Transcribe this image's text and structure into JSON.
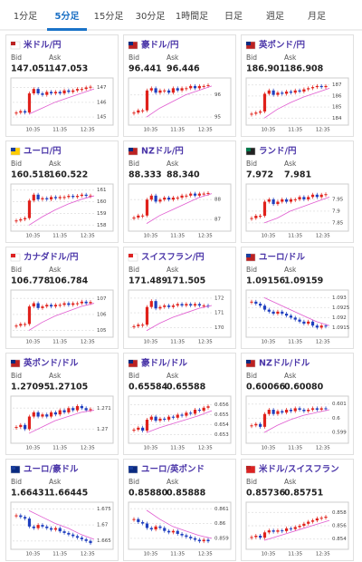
{
  "tabs": [
    "1分足",
    "5分足",
    "15分足",
    "30分足",
    "1時間足",
    "日足",
    "週足",
    "月足"
  ],
  "active_tab": 1,
  "labels": {
    "bid": "Bid",
    "ask": "Ask"
  },
  "time_labels": [
    "10:35",
    "11:35",
    "12:35"
  ],
  "cards": [
    {
      "name": "米ドル/円",
      "bid": "147.051",
      "ask": "147.053",
      "chart": {
        "ylim": [
          144.7,
          147.4
        ],
        "yticks": [
          145,
          146,
          147
        ],
        "closes": [
          145.3,
          145.4,
          145.3,
          146.6,
          146.9,
          146.6,
          146.5,
          146.7,
          146.6,
          146.7,
          146.6,
          146.8,
          146.7,
          146.8,
          146.9,
          146.9,
          147.0,
          147.05
        ],
        "ma": [
          145.2,
          145.6,
          146.0,
          146.3,
          146.6,
          146.9
        ]
      }
    },
    {
      "name": "豪ドル/円",
      "bid": "96.441",
      "ask": "96.446",
      "chart": {
        "ylim": [
          94.8,
          96.6
        ],
        "yticks": [
          95,
          96
        ],
        "closes": [
          95.2,
          95.3,
          95.3,
          96.2,
          96.3,
          96.1,
          96.2,
          96.2,
          96.1,
          96.3,
          96.2,
          96.3,
          96.3,
          96.4,
          96.3,
          96.4,
          96.4,
          96.44
        ],
        "ma": [
          95.0,
          95.4,
          95.7,
          96.0,
          96.2,
          96.4
        ]
      }
    },
    {
      "name": "英ポンド/円",
      "bid": "186.901",
      "ask": "186.908",
      "chart": {
        "ylim": [
          183.7,
          187.3
        ],
        "yticks": [
          184,
          185,
          186,
          187
        ],
        "closes": [
          184.4,
          184.5,
          184.6,
          186.2,
          186.5,
          186.1,
          186.3,
          186.2,
          186.4,
          186.3,
          186.5,
          186.4,
          186.6,
          186.7,
          186.8,
          186.9,
          186.8,
          186.9
        ],
        "ma": [
          184.0,
          184.8,
          185.4,
          185.9,
          186.3,
          186.7
        ]
      }
    },
    {
      "name": "ユーロ/円",
      "bid": "160.518",
      "ask": "160.522",
      "chart": {
        "ylim": [
          157.8,
          161.2
        ],
        "yticks": [
          158,
          159,
          160,
          161
        ],
        "closes": [
          158.4,
          158.5,
          158.6,
          160.1,
          160.6,
          160.2,
          160.3,
          160.2,
          160.4,
          160.3,
          160.4,
          160.4,
          160.5,
          160.4,
          160.5,
          160.6,
          160.5,
          160.52
        ],
        "ma": [
          158.0,
          158.7,
          159.3,
          159.8,
          160.2,
          160.5
        ]
      }
    },
    {
      "name": "NZドル/円",
      "bid": "88.333",
      "ask": "88.340",
      "chart": {
        "ylim": [
          86.6,
          88.6
        ],
        "yticks": [
          87,
          88
        ],
        "closes": [
          87.1,
          87.2,
          87.2,
          88.0,
          88.2,
          87.9,
          88.0,
          88.1,
          88.0,
          88.1,
          88.1,
          88.2,
          88.2,
          88.3,
          88.2,
          88.3,
          88.3,
          88.33
        ],
        "ma": [
          86.8,
          87.2,
          87.5,
          87.8,
          88.1,
          88.3
        ]
      }
    },
    {
      "name": "ランド/円",
      "bid": "7.972",
      "ask": "7.981",
      "chart": {
        "ylim": [
          7.83,
          8.0
        ],
        "yticks": [
          7.85,
          7.9,
          7.95
        ],
        "closes": [
          7.87,
          7.88,
          7.88,
          7.94,
          7.95,
          7.93,
          7.94,
          7.95,
          7.94,
          7.95,
          7.95,
          7.96,
          7.95,
          7.96,
          7.97,
          7.96,
          7.97,
          7.972
        ],
        "ma": [
          7.85,
          7.87,
          7.9,
          7.92,
          7.94,
          7.96
        ]
      }
    },
    {
      "name": "カナダドル/円",
      "bid": "106.778",
      "ask": "106.784",
      "chart": {
        "ylim": [
          104.8,
          107.3
        ],
        "yticks": [
          105,
          106,
          107
        ],
        "closes": [
          105.3,
          105.4,
          105.4,
          106.5,
          106.7,
          106.4,
          106.5,
          106.6,
          106.5,
          106.6,
          106.6,
          106.7,
          106.6,
          106.7,
          106.7,
          106.8,
          106.7,
          106.78
        ],
        "ma": [
          105.0,
          105.5,
          105.9,
          106.2,
          106.5,
          106.7
        ]
      }
    },
    {
      "name": "スイスフラン/円",
      "bid": "171.489",
      "ask": "171.505",
      "chart": {
        "ylim": [
          169.6,
          172.3
        ],
        "yticks": [
          170,
          171,
          172
        ],
        "closes": [
          170.1,
          170.2,
          170.2,
          171.4,
          171.8,
          171.3,
          171.4,
          171.5,
          171.4,
          171.5,
          171.6,
          171.5,
          171.6,
          171.5,
          171.6,
          171.5,
          171.5,
          171.49
        ],
        "ma": [
          169.8,
          170.3,
          170.7,
          171.0,
          171.3,
          171.5
        ]
      }
    },
    {
      "name": "ユーロ/ドル",
      "bid": "1.09156",
      "ask": "1.09159",
      "chart": {
        "ylim": [
          1.0912,
          1.0932
        ],
        "yticks": [
          1.0915,
          1.092,
          1.0925,
          1.093
        ],
        "closes": [
          1.0928,
          1.0927,
          1.0926,
          1.0924,
          1.0923,
          1.0922,
          1.0923,
          1.0922,
          1.0921,
          1.092,
          1.0919,
          1.0918,
          1.0917,
          1.0918,
          1.0916,
          1.0915,
          1.0916,
          1.09156
        ],
        "ma": [
          1.093,
          1.0927,
          1.0924,
          1.0921,
          1.0918,
          1.0916
        ]
      }
    },
    {
      "name": "英ポンド/ドル",
      "bid": "1.27095",
      "ask": "1.27105",
      "chart": {
        "ylim": [
          1.2695,
          1.2714
        ],
        "yticks": [
          1.27,
          1.271
        ],
        "closes": [
          1.2701,
          1.2702,
          1.27,
          1.2706,
          1.2708,
          1.2706,
          1.2707,
          1.2706,
          1.2708,
          1.2707,
          1.2709,
          1.2708,
          1.271,
          1.2709,
          1.2711,
          1.271,
          1.2709,
          1.27095
        ],
        "ma": [
          1.2698,
          1.2701,
          1.2704,
          1.2706,
          1.2708,
          1.2709
        ]
      }
    },
    {
      "name": "豪ドル/ドル",
      "bid": "0.65584",
      "ask": "0.65588",
      "chart": {
        "ylim": [
          0.6525,
          0.6565
        ],
        "yticks": [
          0.653,
          0.654,
          0.655,
          0.656
        ],
        "closes": [
          0.6535,
          0.6537,
          0.6534,
          0.6545,
          0.6548,
          0.6544,
          0.6546,
          0.6545,
          0.6548,
          0.6547,
          0.655,
          0.6549,
          0.6552,
          0.6551,
          0.6555,
          0.6554,
          0.6557,
          0.65584
        ],
        "ma": [
          0.6532,
          0.6537,
          0.6541,
          0.6545,
          0.6549,
          0.6554
        ]
      }
    },
    {
      "name": "NZドル/ドル",
      "bid": "0.60066",
      "ask": "0.60080",
      "chart": {
        "ylim": [
          0.5985,
          0.6013
        ],
        "yticks": [
          0.599,
          0.6,
          0.601
        ],
        "closes": [
          0.5995,
          0.5996,
          0.5994,
          0.6003,
          0.6006,
          0.6003,
          0.6005,
          0.6004,
          0.6006,
          0.6005,
          0.6007,
          0.6006,
          0.6005,
          0.6006,
          0.6007,
          0.6006,
          0.6007,
          0.60066
        ],
        "ma": [
          0.599,
          0.5995,
          0.5999,
          0.6002,
          0.6004,
          0.6006
        ]
      }
    },
    {
      "name": "ユーロ/豪ドル",
      "bid": "1.66431",
      "ask": "1.66445",
      "chart": {
        "ylim": [
          1.6635,
          1.676
        ],
        "yticks": [
          1.665,
          1.67,
          1.675
        ],
        "closes": [
          1.673,
          1.6725,
          1.672,
          1.6695,
          1.669,
          1.67,
          1.6695,
          1.669,
          1.6685,
          1.669,
          1.668,
          1.6675,
          1.667,
          1.6665,
          1.666,
          1.6655,
          1.665,
          1.66431
        ],
        "ma": [
          1.6745,
          1.6725,
          1.6705,
          1.669,
          1.667,
          1.6655
        ]
      }
    },
    {
      "name": "ユーロ/英ポンド",
      "bid": "0.85880",
      "ask": "0.85888",
      "chart": {
        "ylim": [
          0.8585,
          0.8612
        ],
        "yticks": [
          0.859,
          0.86,
          0.861
        ],
        "closes": [
          0.8603,
          0.8601,
          0.86,
          0.8597,
          0.8596,
          0.8598,
          0.8597,
          0.8595,
          0.8594,
          0.8595,
          0.8593,
          0.8592,
          0.8591,
          0.859,
          0.8589,
          0.8588,
          0.8589,
          0.8588
        ],
        "ma": [
          0.8609,
          0.8603,
          0.8598,
          0.8595,
          0.8592,
          0.859
        ]
      }
    },
    {
      "name": "米ドル/スイスフラン",
      "bid": "0.85736",
      "ask": "0.85751",
      "chart": {
        "ylim": [
          0.853,
          0.859
        ],
        "yticks": [
          0.854,
          0.856,
          0.858
        ],
        "closes": [
          0.8543,
          0.8545,
          0.8542,
          0.855,
          0.8553,
          0.8551,
          0.8553,
          0.8552,
          0.8556,
          0.8555,
          0.8558,
          0.856,
          0.8563,
          0.8566,
          0.8568,
          0.8571,
          0.8572,
          0.85736
        ],
        "ma": [
          0.8538,
          0.8544,
          0.855,
          0.8556,
          0.8562,
          0.8568
        ]
      }
    }
  ]
}
